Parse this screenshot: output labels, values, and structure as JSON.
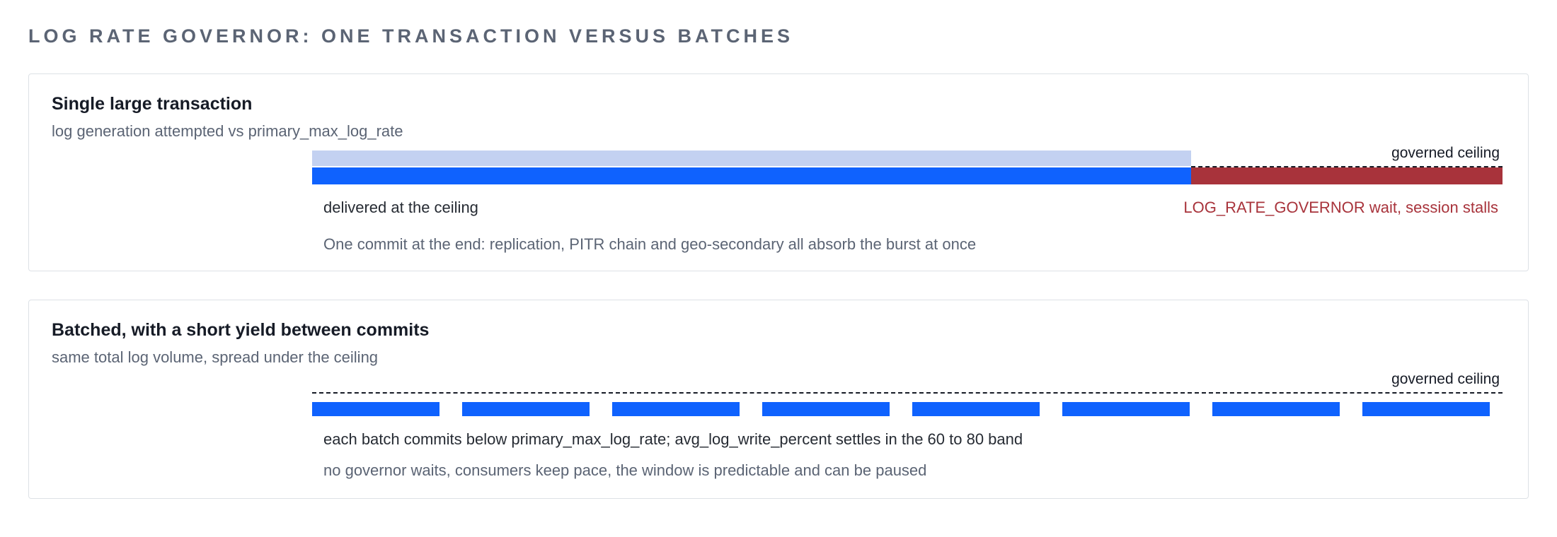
{
  "page": {
    "title": "LOG RATE GOVERNOR: ONE TRANSACTION VERSUS BATCHES"
  },
  "single": {
    "title": "Single large transaction",
    "subtitle": "log generation attempted vs primary_max_log_rate",
    "ceiling_label": "governed ceiling",
    "delivered_label": "delivered at the ceiling",
    "stall_label": "LOG_RATE_GOVERNOR wait, session stalls",
    "footnote": "One commit at the end: replication, PITR chain and geo-secondary all absorb the burst at once",
    "delivered_fraction": 0.738
  },
  "batched": {
    "title": "Batched, with a short yield between commits",
    "subtitle": "same total log volume, spread under the ceiling",
    "ceiling_label": "governed ceiling",
    "note": "each batch commits below primary_max_log_rate; avg_log_write_percent settles in the 60 to 80 band",
    "footnote": "no governor waits, consumers keep pace, the window is predictable and can be paused",
    "batch_count": 8
  },
  "colors": {
    "delivered": "#0f62fe",
    "attempted": "#c3d1f1",
    "stall": "#a8333b",
    "ceiling": "#161b26"
  }
}
